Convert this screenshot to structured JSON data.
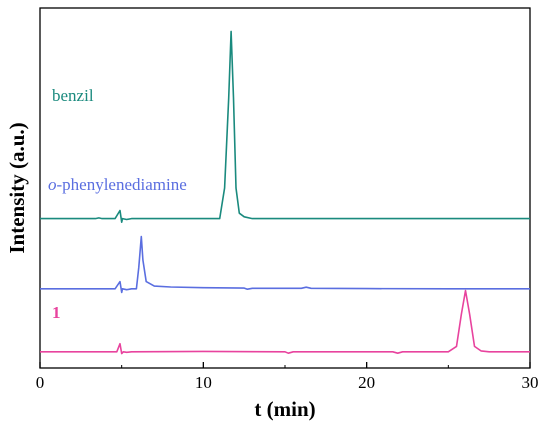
{
  "chart_data": {
    "type": "line",
    "xlabel": "t (min)",
    "ylabel": "Intensity (a.u.)",
    "xlim": [
      0,
      30
    ],
    "x_ticks": [
      0,
      10,
      20,
      30
    ],
    "x_tick_labels": [
      "0",
      "10",
      "20",
      "30"
    ],
    "grid": false,
    "y_units": "arbitrary",
    "series": [
      {
        "name": "benzil",
        "label_italic_prefix": "",
        "label_rest": "benzil",
        "color": "#1a8a7e",
        "baseline": 0.83,
        "points": [
          [
            0.0,
            0.83
          ],
          [
            3.4,
            0.83
          ],
          [
            3.6,
            0.834
          ],
          [
            3.8,
            0.83
          ],
          [
            4.6,
            0.83
          ],
          [
            4.9,
            0.875
          ],
          [
            5.0,
            0.81
          ],
          [
            5.05,
            0.83
          ],
          [
            5.3,
            0.825
          ],
          [
            5.6,
            0.83
          ],
          [
            11.0,
            0.83
          ],
          [
            11.3,
            1.0
          ],
          [
            11.55,
            1.5
          ],
          [
            11.7,
            1.87
          ],
          [
            11.85,
            1.5
          ],
          [
            12.0,
            1.0
          ],
          [
            12.2,
            0.86
          ],
          [
            12.5,
            0.84
          ],
          [
            13.0,
            0.83
          ],
          [
            30.0,
            0.83
          ]
        ]
      },
      {
        "name": "o-phenylenediamine",
        "label_italic_prefix": "o",
        "label_rest": "-phenylenediamine",
        "color": "#5a6ee0",
        "baseline": 0.44,
        "points": [
          [
            0.0,
            0.44
          ],
          [
            4.6,
            0.44
          ],
          [
            4.9,
            0.48
          ],
          [
            5.0,
            0.42
          ],
          [
            5.05,
            0.44
          ],
          [
            5.3,
            0.435
          ],
          [
            5.6,
            0.44
          ],
          [
            5.9,
            0.44
          ],
          [
            6.05,
            0.56
          ],
          [
            6.2,
            0.73
          ],
          [
            6.3,
            0.6
          ],
          [
            6.5,
            0.48
          ],
          [
            7.0,
            0.455
          ],
          [
            8.0,
            0.45
          ],
          [
            10.0,
            0.446
          ],
          [
            12.5,
            0.444
          ],
          [
            12.7,
            0.438
          ],
          [
            13.0,
            0.443
          ],
          [
            16.0,
            0.443
          ],
          [
            16.3,
            0.449
          ],
          [
            16.6,
            0.443
          ],
          [
            20.0,
            0.441
          ],
          [
            25.0,
            0.44
          ],
          [
            30.0,
            0.44
          ]
        ]
      },
      {
        "name": "1",
        "label_italic_prefix": "",
        "label_rest": "1",
        "color": "#e8439e",
        "baseline": 0.09,
        "points": [
          [
            0.0,
            0.09
          ],
          [
            4.7,
            0.09
          ],
          [
            4.9,
            0.135
          ],
          [
            5.0,
            0.08
          ],
          [
            5.1,
            0.09
          ],
          [
            5.3,
            0.087
          ],
          [
            5.6,
            0.09
          ],
          [
            10.0,
            0.092
          ],
          [
            15.0,
            0.09
          ],
          [
            15.2,
            0.082
          ],
          [
            15.5,
            0.09
          ],
          [
            21.6,
            0.09
          ],
          [
            21.9,
            0.082
          ],
          [
            22.2,
            0.09
          ],
          [
            25.0,
            0.09
          ],
          [
            25.5,
            0.12
          ],
          [
            25.8,
            0.3
          ],
          [
            26.05,
            0.43
          ],
          [
            26.3,
            0.3
          ],
          [
            26.6,
            0.12
          ],
          [
            27.0,
            0.095
          ],
          [
            27.5,
            0.09
          ],
          [
            30.0,
            0.09
          ]
        ]
      }
    ]
  }
}
